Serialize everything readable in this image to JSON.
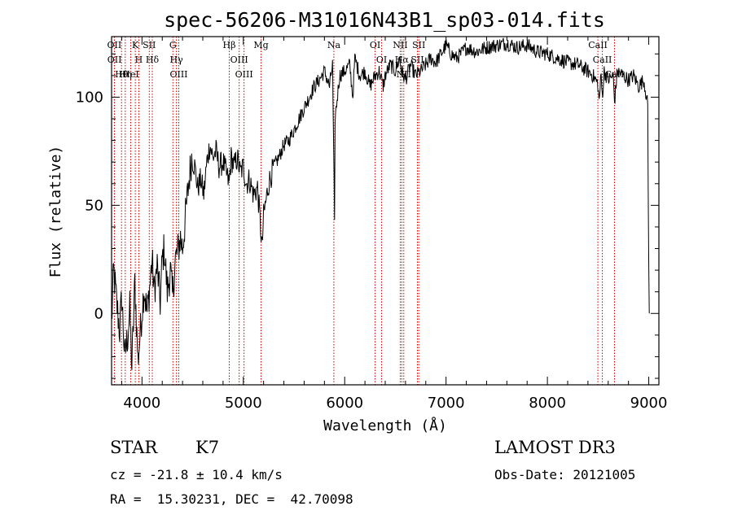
{
  "chart_data": {
    "type": "line",
    "title": "spec-56206-M31016N43B1_sp03-014.fits",
    "xlabel": "Wavelength (Å)",
    "ylabel": "Flux (relative)",
    "xlim": [
      3700,
      9100
    ],
    "ylim": [
      -33,
      128
    ],
    "xticks": [
      4000,
      5000,
      6000,
      7000,
      8000,
      9000
    ],
    "yticks": [
      0,
      50,
      100
    ],
    "spectrum_anchors": [
      [
        3700,
        -5
      ],
      [
        3720,
        20
      ],
      [
        3750,
        5
      ],
      [
        3780,
        -8
      ],
      [
        3800,
        8
      ],
      [
        3830,
        -20
      ],
      [
        3860,
        -10
      ],
      [
        3880,
        2
      ],
      [
        3900,
        -25
      ],
      [
        3930,
        15
      ],
      [
        3960,
        -22
      ],
      [
        3990,
        -5
      ],
      [
        4020,
        12
      ],
      [
        4050,
        0
      ],
      [
        4080,
        14
      ],
      [
        4100,
        25
      ],
      [
        4120,
        10
      ],
      [
        4150,
        22
      ],
      [
        4180,
        5
      ],
      [
        4200,
        25
      ],
      [
        4220,
        30
      ],
      [
        4250,
        10
      ],
      [
        4280,
        20
      ],
      [
        4300,
        8
      ],
      [
        4330,
        25
      ],
      [
        4350,
        28
      ],
      [
        4380,
        35
      ],
      [
        4400,
        30
      ],
      [
        4430,
        45
      ],
      [
        4460,
        60
      ],
      [
        4490,
        72
      ],
      [
        4520,
        68
      ],
      [
        4550,
        58
      ],
      [
        4580,
        62
      ],
      [
        4610,
        55
      ],
      [
        4640,
        70
      ],
      [
        4670,
        78
      ],
      [
        4700,
        72
      ],
      [
        4730,
        75
      ],
      [
        4760,
        68
      ],
      [
        4800,
        70
      ],
      [
        4830,
        65
      ],
      [
        4860,
        60
      ],
      [
        4880,
        72
      ],
      [
        4910,
        68
      ],
      [
        4940,
        72
      ],
      [
        4970,
        65
      ],
      [
        5000,
        68
      ],
      [
        5030,
        60
      ],
      [
        5060,
        62
      ],
      [
        5100,
        55
      ],
      [
        5140,
        58
      ],
      [
        5170,
        40
      ],
      [
        5185,
        30
      ],
      [
        5200,
        45
      ],
      [
        5250,
        60
      ],
      [
        5300,
        68
      ],
      [
        5350,
        72
      ],
      [
        5400,
        78
      ],
      [
        5450,
        80
      ],
      [
        5500,
        85
      ],
      [
        5550,
        90
      ],
      [
        5600,
        95
      ],
      [
        5650,
        100
      ],
      [
        5700,
        105
      ],
      [
        5750,
        108
      ],
      [
        5800,
        112
      ],
      [
        5850,
        105
      ],
      [
        5880,
        115
      ],
      [
        5895,
        60
      ],
      [
        5900,
        40
      ],
      [
        5905,
        90
      ],
      [
        5950,
        110
      ],
      [
        6000,
        112
      ],
      [
        6050,
        115
      ],
      [
        6080,
        100
      ],
      [
        6100,
        118
      ],
      [
        6150,
        110
      ],
      [
        6200,
        112
      ],
      [
        6250,
        105
      ],
      [
        6300,
        110
      ],
      [
        6340,
        112
      ],
      [
        6380,
        105
      ],
      [
        6400,
        110
      ],
      [
        6450,
        115
      ],
      [
        6500,
        112
      ],
      [
        6540,
        118
      ],
      [
        6563,
        112
      ],
      [
        6600,
        108
      ],
      [
        6650,
        115
      ],
      [
        6700,
        110
      ],
      [
        6750,
        112
      ],
      [
        6800,
        115
      ],
      [
        6850,
        118
      ],
      [
        6900,
        116
      ],
      [
        6950,
        120
      ],
      [
        7000,
        124
      ],
      [
        7050,
        120
      ],
      [
        7100,
        118
      ],
      [
        7150,
        120
      ],
      [
        7200,
        123
      ],
      [
        7300,
        121
      ],
      [
        7400,
        123
      ],
      [
        7500,
        124
      ],
      [
        7600,
        125
      ],
      [
        7700,
        123
      ],
      [
        7800,
        124
      ],
      [
        7900,
        121
      ],
      [
        8000,
        120
      ],
      [
        8100,
        118
      ],
      [
        8200,
        116
      ],
      [
        8300,
        115
      ],
      [
        8400,
        112
      ],
      [
        8450,
        110
      ],
      [
        8498,
        106
      ],
      [
        8510,
        98
      ],
      [
        8530,
        110
      ],
      [
        8542,
        100
      ],
      [
        8560,
        112
      ],
      [
        8600,
        108
      ],
      [
        8650,
        110
      ],
      [
        8662,
        98
      ],
      [
        8690,
        112
      ],
      [
        8750,
        110
      ],
      [
        8800,
        108
      ],
      [
        8850,
        110
      ],
      [
        8900,
        105
      ],
      [
        8950,
        108
      ],
      [
        8980,
        100
      ],
      [
        8990,
        95
      ],
      [
        9000,
        20
      ],
      [
        9005,
        0
      ]
    ],
    "emission_lines": [
      {
        "label": "OII",
        "wavelength": 3727
      },
      {
        "label": "OII",
        "wavelength": 3729
      },
      {
        "label": "Hθ",
        "wavelength": 3798
      },
      {
        "label": "Hη",
        "wavelength": 3835
      },
      {
        "label": "K",
        "wavelength": 3934
      },
      {
        "label": "H",
        "wavelength": 3969
      },
      {
        "label": "HeI",
        "wavelength": 3889
      },
      {
        "label": "SII",
        "wavelength": 4072
      },
      {
        "label": "Hδ",
        "wavelength": 4102
      },
      {
        "label": "OIII",
        "wavelength": 4363
      },
      {
        "label": "Hγ",
        "wavelength": 4340
      },
      {
        "label": "G",
        "wavelength": 4305
      },
      {
        "label": "Hβ",
        "wavelength": 4861
      },
      {
        "label": "OIII",
        "wavelength": 4959
      },
      {
        "label": "OIII",
        "wavelength": 5007
      },
      {
        "label": "Mg",
        "wavelength": 5175
      },
      {
        "label": "Na",
        "wavelength": 5893
      },
      {
        "label": "OI",
        "wavelength": 6300
      },
      {
        "label": "OI",
        "wavelength": 6364
      },
      {
        "label": "Hα",
        "wavelength": 6563
      },
      {
        "label": "NII",
        "wavelength": 6548
      },
      {
        "label": "NII",
        "wavelength": 6583
      },
      {
        "label": "SII",
        "wavelength": 6717
      },
      {
        "label": "SII",
        "wavelength": 6731
      },
      {
        "label": "CaII",
        "wavelength": 8498
      },
      {
        "label": "CaII",
        "wavelength": 8542
      },
      {
        "label": "CaII",
        "wavelength": 8662
      }
    ]
  },
  "info": {
    "class": "STAR",
    "subclass": "K7",
    "redshift": "cz = -21.8 ± 10.4 km/s",
    "coords": "RA =  15.30231, DEC =  42.70098",
    "survey": "LAMOST DR3",
    "obs_date": "Obs-Date: 20121005"
  },
  "colors": {
    "spectrum": "#000000",
    "lines": "#cc0000",
    "axes": "#000000"
  }
}
